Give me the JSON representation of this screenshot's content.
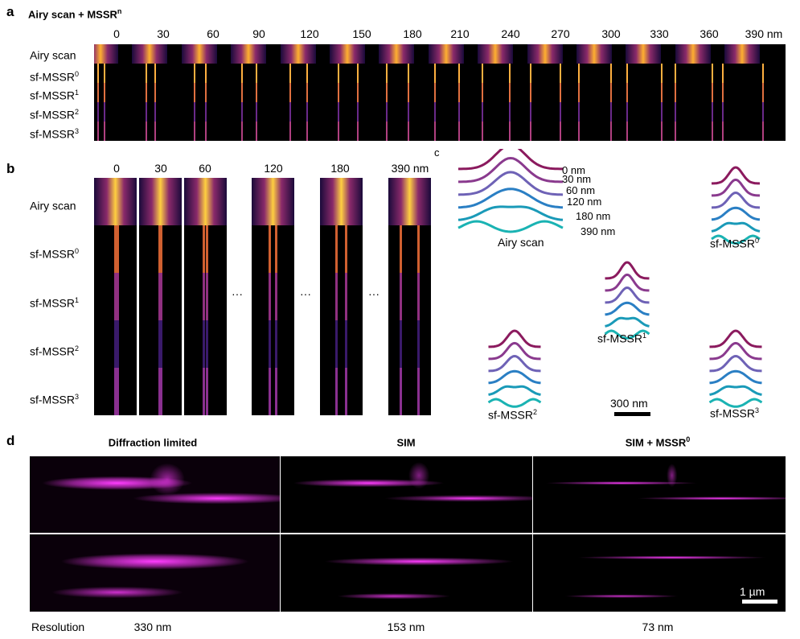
{
  "panel_a": {
    "letter": "a",
    "title": "Airy scan + MSSR",
    "title_sup": "n",
    "ticks": [
      "0",
      "30",
      "60",
      "90",
      "120",
      "150",
      "180",
      "210",
      "240",
      "270",
      "300",
      "330",
      "360",
      "390 nm"
    ],
    "rows": [
      {
        "label": "Airy scan",
        "sup": ""
      },
      {
        "label": "sf-MSSR",
        "sup": "0"
      },
      {
        "label": "sf-MSSR",
        "sup": "1"
      },
      {
        "label": "sf-MSSR",
        "sup": "2"
      },
      {
        "label": "sf-MSSR",
        "sup": "3"
      }
    ]
  },
  "panel_b": {
    "letter": "b",
    "ticks": [
      "0",
      "30",
      "60",
      "120",
      "180",
      "390 nm"
    ],
    "ellipsis": "···",
    "rows": [
      {
        "label": "Airy scan",
        "sup": ""
      },
      {
        "label": "sf-MSSR",
        "sup": "0"
      },
      {
        "label": "sf-MSSR",
        "sup": "1"
      },
      {
        "label": "sf-MSSR",
        "sup": "2"
      },
      {
        "label": "sf-MSSR",
        "sup": "3"
      }
    ]
  },
  "panel_c": {
    "letter": "c",
    "airy_label": "Airy scan",
    "separations": [
      "0 nm",
      "30 nm",
      "60 nm",
      "120 nm",
      "180 nm",
      "390 nm"
    ],
    "groups": [
      {
        "label": "sf-MSSR",
        "sup": "0"
      },
      {
        "label": "sf-MSSR",
        "sup": "1"
      },
      {
        "label": "sf-MSSR",
        "sup": "2"
      },
      {
        "label": "sf-MSSR",
        "sup": "3"
      }
    ],
    "scale_bar": "300 nm",
    "colors": [
      "#8b1a5e",
      "#8a3a8e",
      "#6e62b6",
      "#2a7fc4",
      "#1a9ab8",
      "#1ab3b3"
    ]
  },
  "panel_d": {
    "letter": "d",
    "titles": [
      {
        "text": "Diffraction limited",
        "sup": ""
      },
      {
        "text": "SIM",
        "sup": ""
      },
      {
        "text": "SIM + MSSR",
        "sup": "0"
      }
    ],
    "resolution_label": "Resolution",
    "resolutions": [
      "330 nm",
      "153 nm",
      "73 nm"
    ],
    "scale_bar": "1 µm",
    "color": "#ff3cff"
  }
}
